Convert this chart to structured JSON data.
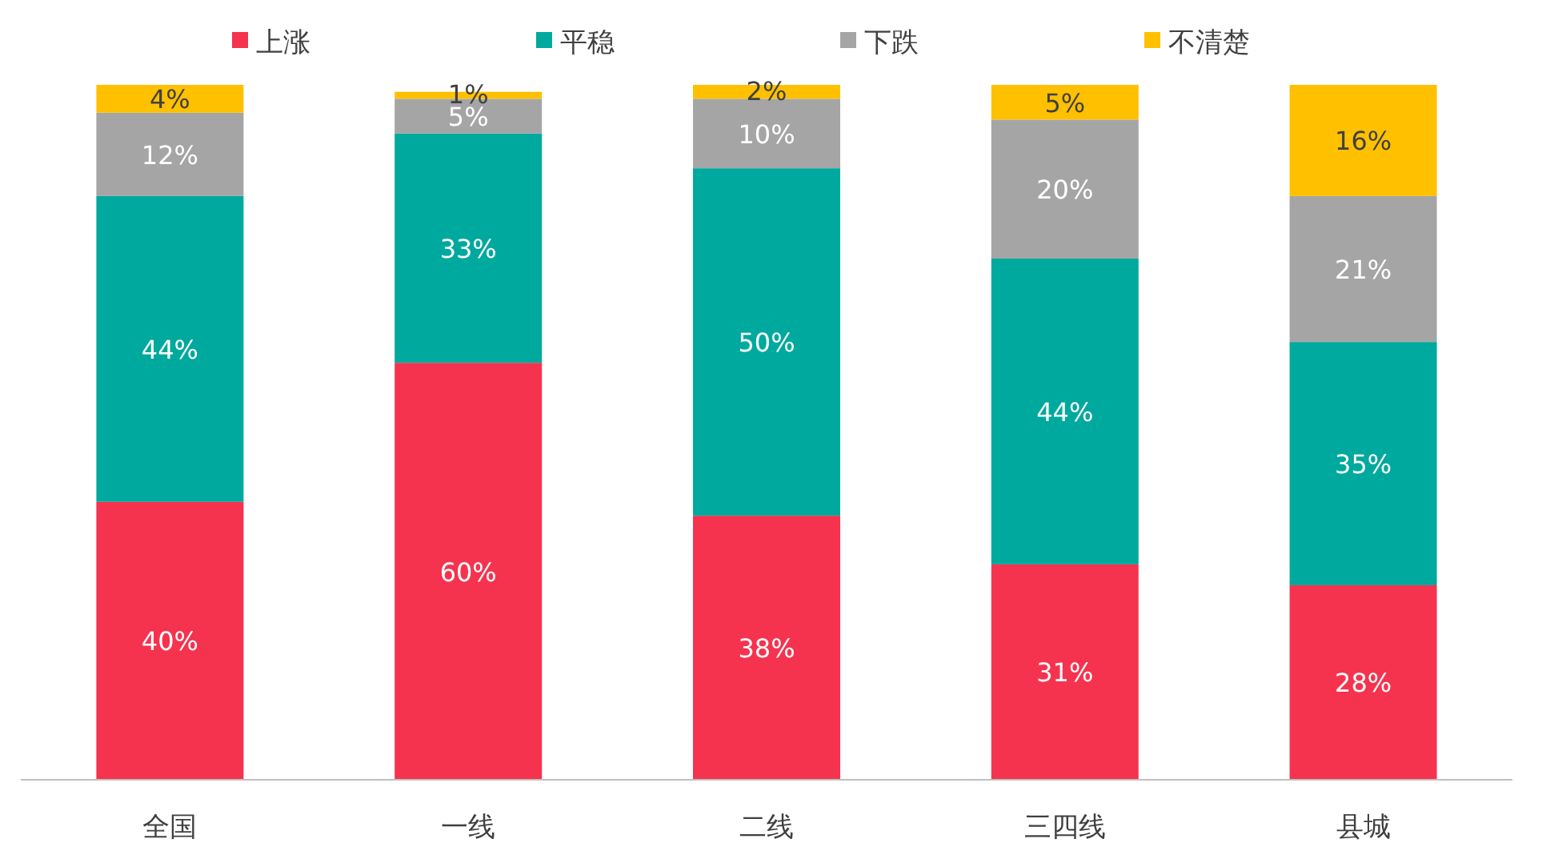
{
  "chart_data": {
    "type": "bar",
    "stacked": true,
    "legend": "top",
    "categories": [
      "全国",
      "一线",
      "二线",
      "三四线",
      "县城"
    ],
    "series": [
      {
        "name": "上涨",
        "color": "#f5334f",
        "values": [
          40,
          60,
          38,
          31,
          28
        ],
        "value_labels": [
          "40%",
          "60%",
          "38%",
          "31%",
          "28%"
        ]
      },
      {
        "name": "平稳",
        "color": "#00a99d",
        "values": [
          44,
          33,
          50,
          44,
          35
        ],
        "value_labels": [
          "44%",
          "33%",
          "50%",
          "44%",
          "35%"
        ]
      },
      {
        "name": "下跌",
        "color": "#a5a5a5",
        "values": [
          12,
          5,
          10,
          20,
          21
        ],
        "value_labels": [
          "12%",
          "5%",
          "10%",
          "20%",
          "21%"
        ]
      },
      {
        "name": "不清楚",
        "color": "#ffc000",
        "values": [
          4,
          1,
          2,
          5,
          16
        ],
        "value_labels": [
          "4%",
          "1%",
          "2%",
          "5%",
          "16%"
        ]
      }
    ]
  }
}
